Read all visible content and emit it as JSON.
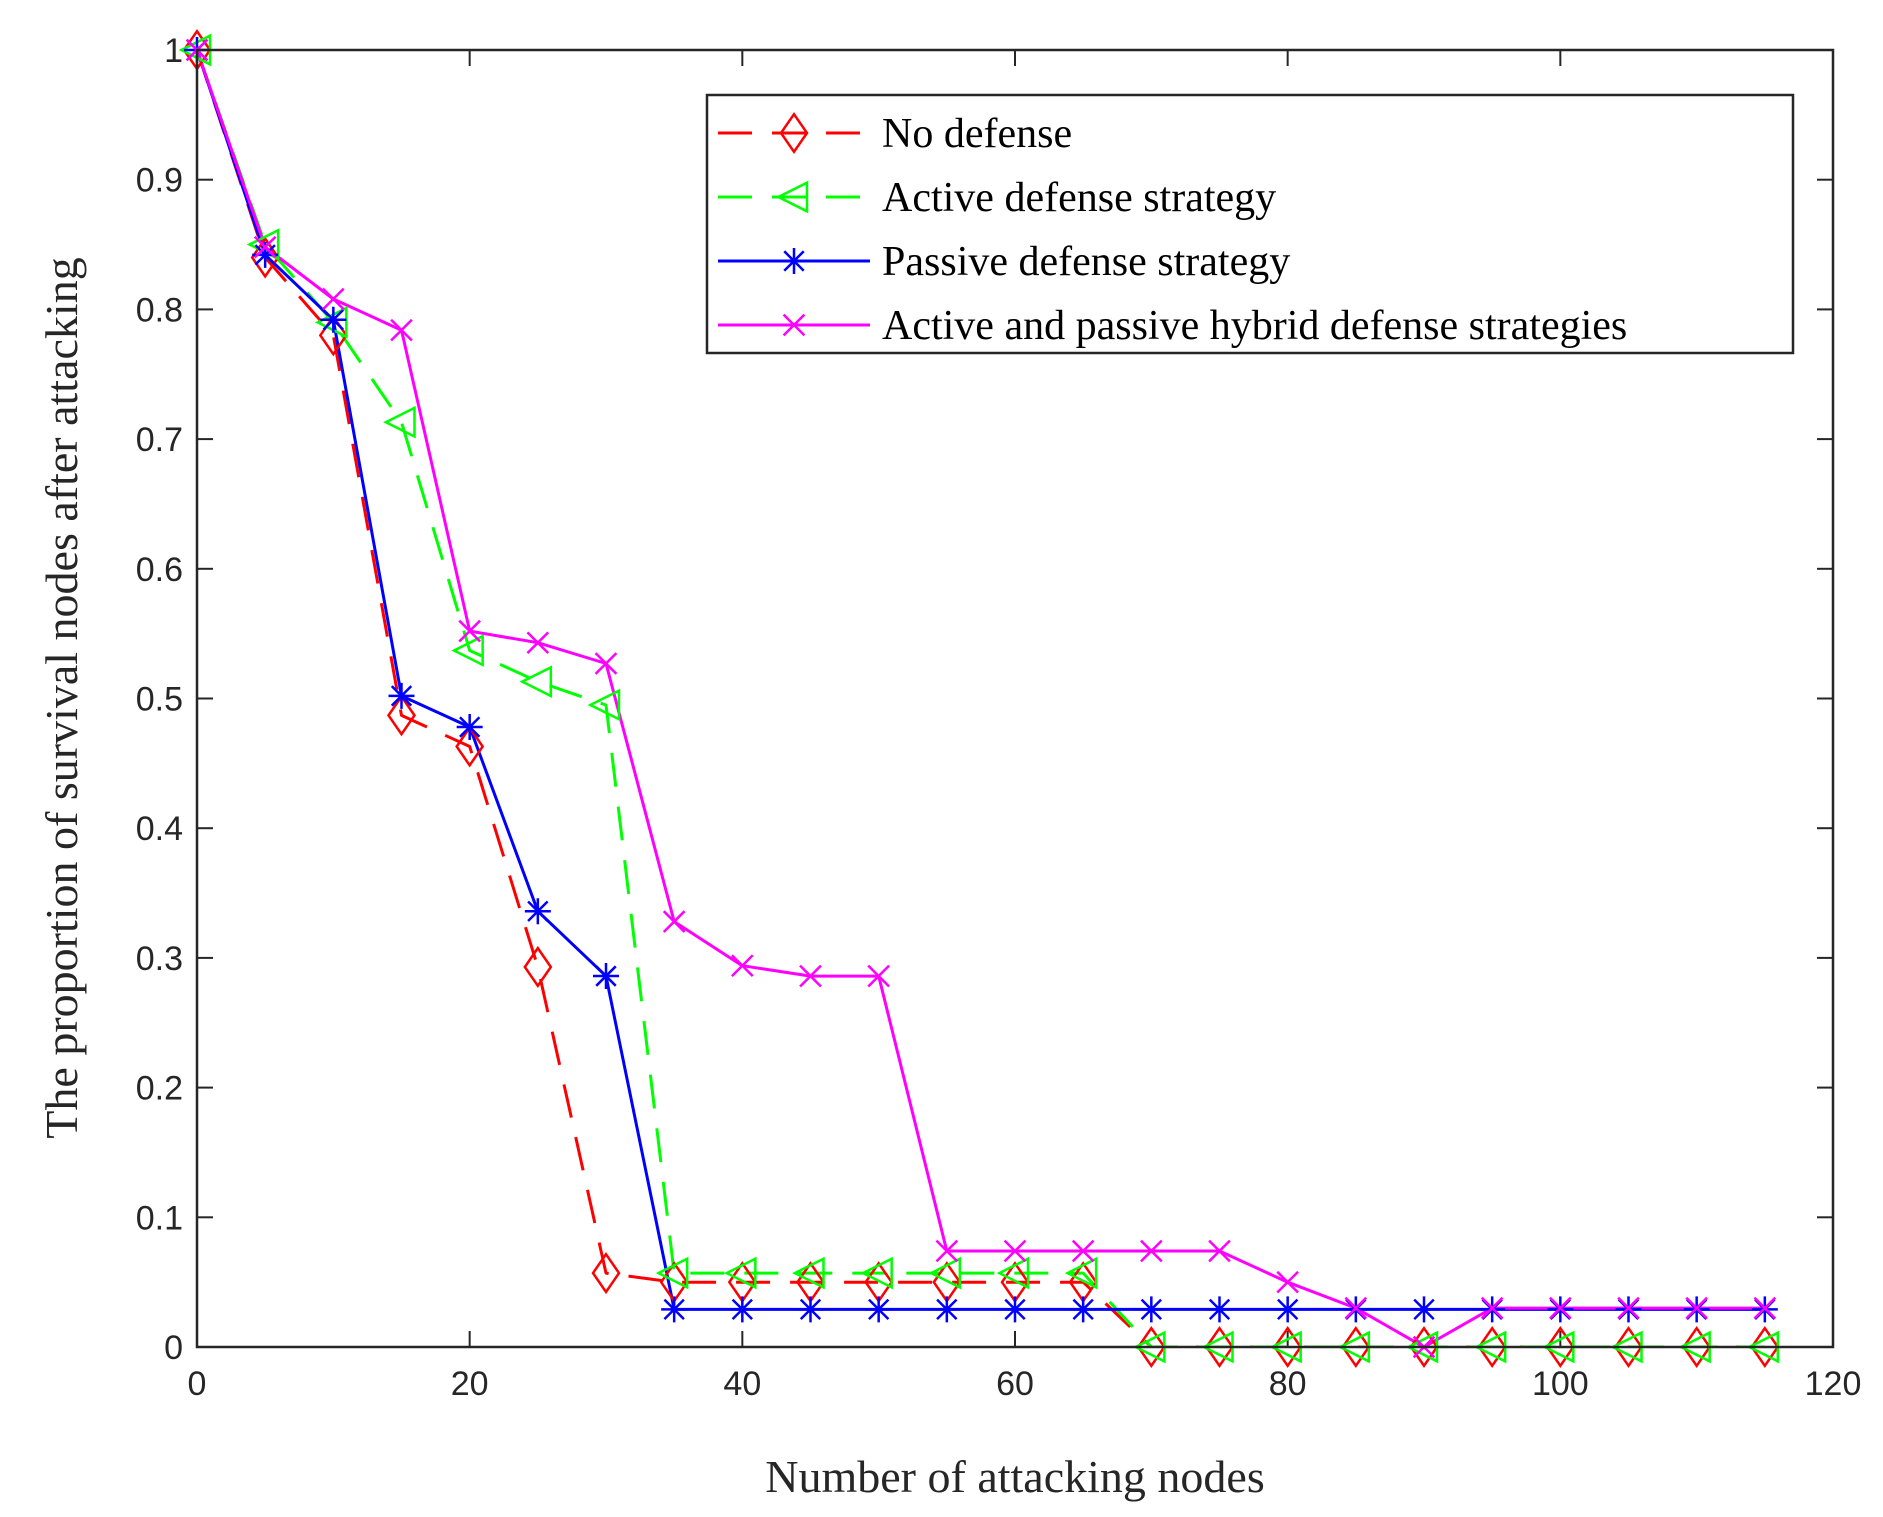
{
  "chart_data": {
    "type": "line",
    "title": "",
    "xlabel": "Number of attacking nodes",
    "ylabel": "The proportion of survival nodes after attacking",
    "xlim": [
      0,
      120
    ],
    "ylim": [
      0,
      1
    ],
    "xticks": [
      0,
      20,
      40,
      60,
      80,
      100,
      120
    ],
    "yticks": [
      0,
      0.1,
      0.2,
      0.3,
      0.4,
      0.5,
      0.6,
      0.7,
      0.8,
      0.9,
      1
    ],
    "ytick_labels": [
      "0",
      "0.1",
      "0.2",
      "0.3",
      "0.4",
      "0.5",
      "0.6",
      "0.7",
      "0.8",
      "0.9",
      "1"
    ],
    "legend_position": "top-right",
    "x": [
      0,
      5,
      10,
      15,
      20,
      25,
      30,
      35,
      40,
      45,
      50,
      55,
      60,
      65,
      70,
      75,
      80,
      85,
      90,
      95,
      100,
      105,
      110,
      115
    ],
    "series": [
      {
        "name": "No defense",
        "color": "#ff0000",
        "line_style": "dashed",
        "marker": "diamond",
        "values": [
          1.0,
          0.84,
          0.78,
          0.487,
          0.463,
          0.293,
          0.057,
          0.05,
          0.05,
          0.05,
          0.05,
          0.05,
          0.05,
          0.05,
          0,
          0,
          0,
          0,
          0,
          0,
          0,
          0,
          0,
          0
        ]
      },
      {
        "name": "Active defense strategy",
        "color": "#00ff00",
        "line_style": "dashed",
        "marker": "triangle-left",
        "values": [
          1.0,
          0.85,
          0.79,
          0.713,
          0.537,
          0.513,
          0.495,
          0.057,
          0.057,
          0.057,
          0.057,
          0.057,
          0.057,
          0.057,
          0,
          0,
          0,
          0,
          0,
          0,
          0,
          0,
          0,
          0
        ]
      },
      {
        "name": "Passive defense strategy",
        "color": "#0000ff",
        "line_style": "solid",
        "marker": "asterisk",
        "values": [
          1.0,
          0.842,
          0.792,
          0.502,
          0.478,
          0.336,
          0.286,
          0.029,
          0.029,
          0.029,
          0.029,
          0.029,
          0.029,
          0.029,
          0.029,
          0.029,
          0.029,
          0.029,
          0.029,
          0.029,
          0.029,
          0.029,
          0.029,
          0.029
        ]
      },
      {
        "name": "Active and passive hybrid defense strategies",
        "color": "#ff00ff",
        "line_style": "solid",
        "marker": "x",
        "values": [
          1.0,
          0.848,
          0.808,
          0.784,
          0.552,
          0.543,
          0.527,
          0.328,
          0.294,
          0.286,
          0.286,
          0.074,
          0.074,
          0.074,
          0.074,
          0.074,
          0.05,
          0.03,
          0.0,
          0.03,
          0.03,
          0.03,
          0.03,
          0.03
        ]
      }
    ]
  }
}
